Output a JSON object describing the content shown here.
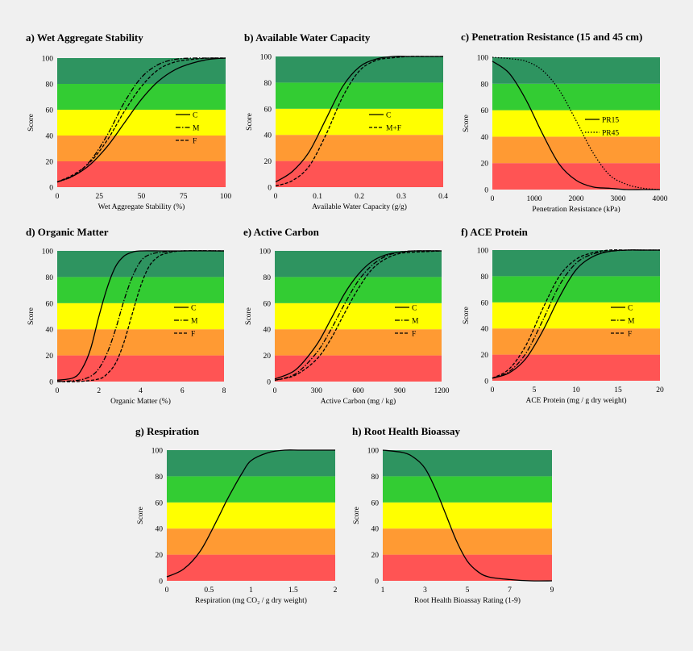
{
  "colors": {
    "background": "#f0f0f0",
    "bands": [
      "#ff5454",
      "#ff9a33",
      "#ffff00",
      "#33cc33",
      "#2e9460"
    ],
    "line": "#000000"
  },
  "chart_data": [
    {
      "id": "a",
      "type": "line",
      "title": "a) Wet Aggregate Stability",
      "xlabel": "Wet Aggregate Stability (%)",
      "ylabel": "Score",
      "xlim": [
        0,
        100
      ],
      "ylim": [
        0,
        100
      ],
      "xticks": [
        "0",
        "25",
        "50",
        "75",
        "100"
      ],
      "xtick_values": [
        0,
        25,
        50,
        75,
        100
      ],
      "yticks": [
        "0",
        "20",
        "40",
        "60",
        "80",
        "100"
      ],
      "bands": [
        0,
        20,
        40,
        60,
        80,
        100
      ],
      "legend_position": "right",
      "series": [
        {
          "name": "C",
          "style": "solid",
          "x": [
            0,
            10,
            20,
            30,
            40,
            50,
            60,
            70,
            80,
            90,
            100
          ],
          "y": [
            4,
            9,
            18,
            32,
            50,
            68,
            82,
            91,
            96,
            99,
            100
          ]
        },
        {
          "name": "M",
          "style": "dashdot",
          "x": [
            0,
            10,
            20,
            30,
            40,
            50,
            60,
            70,
            80,
            90,
            100
          ],
          "y": [
            4,
            9,
            21,
            41,
            66,
            85,
            95,
            99,
            100,
            100,
            100
          ]
        },
        {
          "name": "F",
          "style": "dash",
          "x": [
            0,
            10,
            20,
            30,
            40,
            50,
            60,
            70,
            80,
            90,
            100
          ],
          "y": [
            4,
            10,
            20,
            37,
            59,
            78,
            91,
            97,
            99,
            100,
            100
          ]
        }
      ]
    },
    {
      "id": "b",
      "type": "line",
      "title": "b) Available Water Capacity",
      "xlabel": "Available Water Capacity (g/g)",
      "ylabel": "Score",
      "xlim": [
        0,
        0.4
      ],
      "ylim": [
        0,
        100
      ],
      "xticks": [
        "0",
        "0.1",
        "0.2",
        "0.3",
        "0.4"
      ],
      "xtick_values": [
        0,
        0.1,
        0.2,
        0.3,
        0.4
      ],
      "yticks": [
        "0",
        "20",
        "40",
        "60",
        "80",
        "100"
      ],
      "bands": [
        0,
        20,
        40,
        60,
        80,
        100
      ],
      "legend_position": "right",
      "series": [
        {
          "name": "C",
          "style": "solid",
          "x": [
            0,
            0.04,
            0.08,
            0.12,
            0.16,
            0.2,
            0.24,
            0.28,
            0.32,
            0.36,
            0.4
          ],
          "y": [
            4,
            12,
            27,
            52,
            77,
            92,
            98,
            100,
            100,
            100,
            100
          ]
        },
        {
          "name": "M+F",
          "style": "dash",
          "x": [
            0,
            0.04,
            0.08,
            0.12,
            0.16,
            0.2,
            0.24,
            0.28,
            0.32,
            0.36,
            0.4
          ],
          "y": [
            1,
            5,
            16,
            40,
            69,
            89,
            97,
            99,
            100,
            100,
            100
          ]
        }
      ]
    },
    {
      "id": "c",
      "type": "line",
      "title": "c) Penetration Resistance (15 and 45 cm)",
      "xlabel": "Penetration Resistance (kPa)",
      "ylabel": "Score",
      "xlim": [
        0,
        4000
      ],
      "ylim": [
        0,
        100
      ],
      "xticks": [
        "0",
        "1000",
        "2000",
        "3000",
        "4000"
      ],
      "xtick_values": [
        0,
        1000,
        2000,
        3000,
        4000
      ],
      "yticks": [
        "0",
        "20",
        "40",
        "60",
        "80",
        "100"
      ],
      "bands": [
        0,
        20,
        40,
        60,
        80,
        100
      ],
      "legend_position": "right",
      "series": [
        {
          "name": "PR15",
          "style": "solid",
          "x": [
            0,
            400,
            800,
            1200,
            1600,
            2000,
            2400,
            2800,
            3200,
            3600,
            4000
          ],
          "y": [
            97,
            88,
            68,
            42,
            19,
            7,
            2,
            1,
            0,
            0,
            0
          ]
        },
        {
          "name": "PR45",
          "style": "dot",
          "x": [
            0,
            400,
            800,
            1200,
            1600,
            2000,
            2400,
            2800,
            3200,
            3600,
            4000
          ],
          "y": [
            100,
            99,
            97,
            90,
            75,
            52,
            28,
            11,
            4,
            1,
            0
          ]
        }
      ]
    },
    {
      "id": "d",
      "type": "line",
      "title": "d) Organic Matter",
      "xlabel": "Organic Matter (%)",
      "ylabel": "Score",
      "xlim": [
        0,
        8
      ],
      "ylim": [
        0,
        100
      ],
      "xticks": [
        "0",
        "2",
        "4",
        "6",
        "8"
      ],
      "xtick_values": [
        0,
        2,
        4,
        6,
        8
      ],
      "yticks": [
        "0",
        "20",
        "40",
        "60",
        "80",
        "100"
      ],
      "bands": [
        0,
        20,
        40,
        60,
        80,
        100
      ],
      "legend_position": "right",
      "series": [
        {
          "name": "C",
          "style": "solid",
          "x": [
            0,
            0.8,
            1.2,
            1.6,
            2.0,
            2.4,
            2.8,
            3.2,
            3.6,
            4,
            5,
            6,
            8
          ],
          "y": [
            1,
            3,
            10,
            25,
            50,
            72,
            88,
            96,
            99,
            100,
            100,
            100,
            100
          ]
        },
        {
          "name": "M",
          "style": "dashdot",
          "x": [
            0,
            1,
            1.6,
            2.0,
            2.4,
            2.8,
            3.2,
            3.6,
            4.0,
            4.4,
            5,
            6,
            8
          ],
          "y": [
            0,
            1,
            4,
            10,
            22,
            40,
            62,
            80,
            92,
            97,
            99,
            100,
            100
          ]
        },
        {
          "name": "F",
          "style": "dash",
          "x": [
            0,
            1,
            2,
            2.4,
            2.8,
            3.2,
            3.6,
            4.0,
            4.4,
            4.8,
            5.2,
            6,
            8
          ],
          "y": [
            0,
            0,
            2,
            6,
            14,
            30,
            52,
            73,
            88,
            95,
            98,
            100,
            100
          ]
        }
      ]
    },
    {
      "id": "e",
      "type": "line",
      "title": "e) Active Carbon",
      "xlabel": "Active Carbon (mg / kg)",
      "ylabel": "Score",
      "xlim": [
        0,
        1200
      ],
      "ylim": [
        0,
        100
      ],
      "xticks": [
        "0",
        "300",
        "600",
        "900",
        "1200"
      ],
      "xtick_values": [
        0,
        300,
        600,
        900,
        1200
      ],
      "yticks": [
        "0",
        "20",
        "40",
        "60",
        "80",
        "100"
      ],
      "bands": [
        0,
        20,
        40,
        60,
        80,
        100
      ],
      "legend_position": "right",
      "series": [
        {
          "name": "C",
          "style": "solid",
          "x": [
            0,
            150,
            300,
            400,
            500,
            600,
            700,
            800,
            900,
            1000,
            1200
          ],
          "y": [
            2,
            9,
            28,
            47,
            67,
            82,
            92,
            97,
            99,
            100,
            100
          ]
        },
        {
          "name": "M",
          "style": "dashdot",
          "x": [
            0,
            150,
            300,
            400,
            500,
            600,
            700,
            800,
            900,
            1000,
            1200
          ],
          "y": [
            1,
            6,
            22,
            39,
            59,
            77,
            89,
            96,
            99,
            100,
            100
          ]
        },
        {
          "name": "F",
          "style": "dash",
          "x": [
            0,
            150,
            300,
            400,
            500,
            600,
            700,
            800,
            900,
            1000,
            1200
          ],
          "y": [
            1,
            5,
            17,
            32,
            52,
            71,
            86,
            94,
            98,
            99,
            100
          ]
        }
      ]
    },
    {
      "id": "f",
      "type": "line",
      "title": "f) ACE Protein",
      "xlabel": "ACE Protein (mg / g dry weight)",
      "ylabel": "Score",
      "xlim": [
        0,
        20
      ],
      "ylim": [
        0,
        100
      ],
      "xticks": [
        "0",
        "5",
        "10",
        "15",
        "20"
      ],
      "xtick_values": [
        0,
        5,
        10,
        15,
        20
      ],
      "yticks": [
        "0",
        "20",
        "40",
        "60",
        "80",
        "100"
      ],
      "bands": [
        0,
        20,
        40,
        60,
        80,
        100
      ],
      "legend_position": "right",
      "series": [
        {
          "name": "C",
          "style": "solid",
          "x": [
            0,
            2,
            4,
            6,
            8,
            10,
            12,
            14,
            16,
            18,
            20
          ],
          "y": [
            2,
            6,
            17,
            38,
            64,
            85,
            95,
            99,
            100,
            100,
            100
          ]
        },
        {
          "name": "M",
          "style": "dashdot",
          "x": [
            0,
            2,
            4,
            6,
            8,
            10,
            12,
            14,
            16,
            18,
            20
          ],
          "y": [
            2,
            7,
            21,
            46,
            73,
            90,
            97,
            99,
            100,
            100,
            100
          ]
        },
        {
          "name": "F",
          "style": "dash",
          "x": [
            0,
            2,
            4,
            6,
            8,
            10,
            12,
            14,
            16,
            18,
            20
          ],
          "y": [
            2,
            9,
            27,
            55,
            80,
            93,
            98,
            100,
            100,
            100,
            100
          ]
        }
      ]
    },
    {
      "id": "g",
      "type": "line",
      "title": "g) Respiration",
      "xlabel": "Respiration (mg CO₂ / g dry weight)",
      "ylabel": "Score",
      "xlim": [
        0,
        2
      ],
      "ylim": [
        0,
        100
      ],
      "xticks": [
        "0",
        "0.5",
        "1",
        "1.5",
        "2"
      ],
      "xtick_values": [
        0,
        0.5,
        1,
        1.5,
        2
      ],
      "yticks": [
        "0",
        "20",
        "40",
        "60",
        "80",
        "100"
      ],
      "bands": [
        0,
        20,
        40,
        60,
        80,
        100
      ],
      "series": [
        {
          "name": "",
          "style": "solid",
          "x": [
            0,
            0.2,
            0.4,
            0.6,
            0.7,
            0.8,
            0.9,
            1.0,
            1.2,
            1.4,
            1.6,
            2.0
          ],
          "y": [
            3,
            9,
            23,
            47,
            60,
            72,
            83,
            92,
            98,
            100,
            100,
            100
          ]
        }
      ]
    },
    {
      "id": "h",
      "type": "line",
      "title": "h) Root Health Bioassay",
      "xlabel": "Root Health Bioassay Rating (1-9)",
      "ylabel": "Score",
      "xlim": [
        1,
        9
      ],
      "ylim": [
        0,
        100
      ],
      "xticks": [
        "1",
        "3",
        "5",
        "7",
        "9"
      ],
      "xtick_values": [
        1,
        3,
        5,
        7,
        9
      ],
      "yticks": [
        "0",
        "20",
        "40",
        "60",
        "80",
        "100"
      ],
      "bands": [
        0,
        20,
        40,
        60,
        80,
        100
      ],
      "series": [
        {
          "name": "",
          "style": "solid",
          "x": [
            1,
            2,
            2.5,
            3,
            3.5,
            4,
            4.5,
            5,
            5.5,
            6,
            7,
            8,
            9
          ],
          "y": [
            100,
            98,
            94,
            86,
            70,
            50,
            30,
            15,
            7,
            3,
            1,
            0,
            0
          ]
        }
      ]
    }
  ]
}
